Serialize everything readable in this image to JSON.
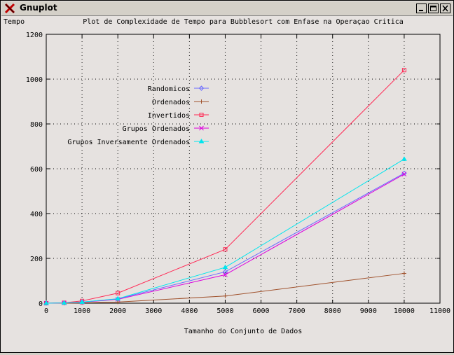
{
  "window": {
    "title": "Gnuplot",
    "buttons": [
      "minimize",
      "maximize",
      "close"
    ]
  },
  "chart_data": {
    "type": "line",
    "title": "Plot de Complexidade de Tempo para Bubblesort com Enfase na Operaçao Critica",
    "xlabel": "Tamanho do Conjunto de Dados",
    "ylabel": "Tempo",
    "xlim": [
      0,
      11000
    ],
    "ylim": [
      0,
      1200
    ],
    "xticks": [
      0,
      1000,
      2000,
      3000,
      4000,
      5000,
      6000,
      7000,
      8000,
      9000,
      10000,
      11000
    ],
    "yticks": [
      0,
      200,
      400,
      600,
      800,
      1000,
      1200
    ],
    "grid": true,
    "legend_position": "upper-left",
    "x": [
      0,
      500,
      1000,
      2000,
      5000,
      10000
    ],
    "series": [
      {
        "name": "Randomicos",
        "color": "#6b6bff",
        "marker": "diamond",
        "values": [
          0,
          1,
          5,
          19,
          140,
          580
        ]
      },
      {
        "name": "Ordenados",
        "color": "#a0522d",
        "marker": "plus",
        "values": [
          0,
          0,
          1,
          5,
          32,
          133
        ]
      },
      {
        "name": "Invertidos",
        "color": "#ff2a55",
        "marker": "square",
        "values": [
          0,
          2,
          10,
          45,
          240,
          1040
        ]
      },
      {
        "name": "Grupos Ordenados",
        "color": "#dd00dd",
        "marker": "cross",
        "values": [
          0,
          1,
          4,
          17,
          127,
          576
        ]
      },
      {
        "name": "Grupos Inversamente Ordenados",
        "color": "#00e5ee",
        "marker": "triangle",
        "values": [
          0,
          1,
          5,
          20,
          160,
          643
        ]
      }
    ]
  }
}
